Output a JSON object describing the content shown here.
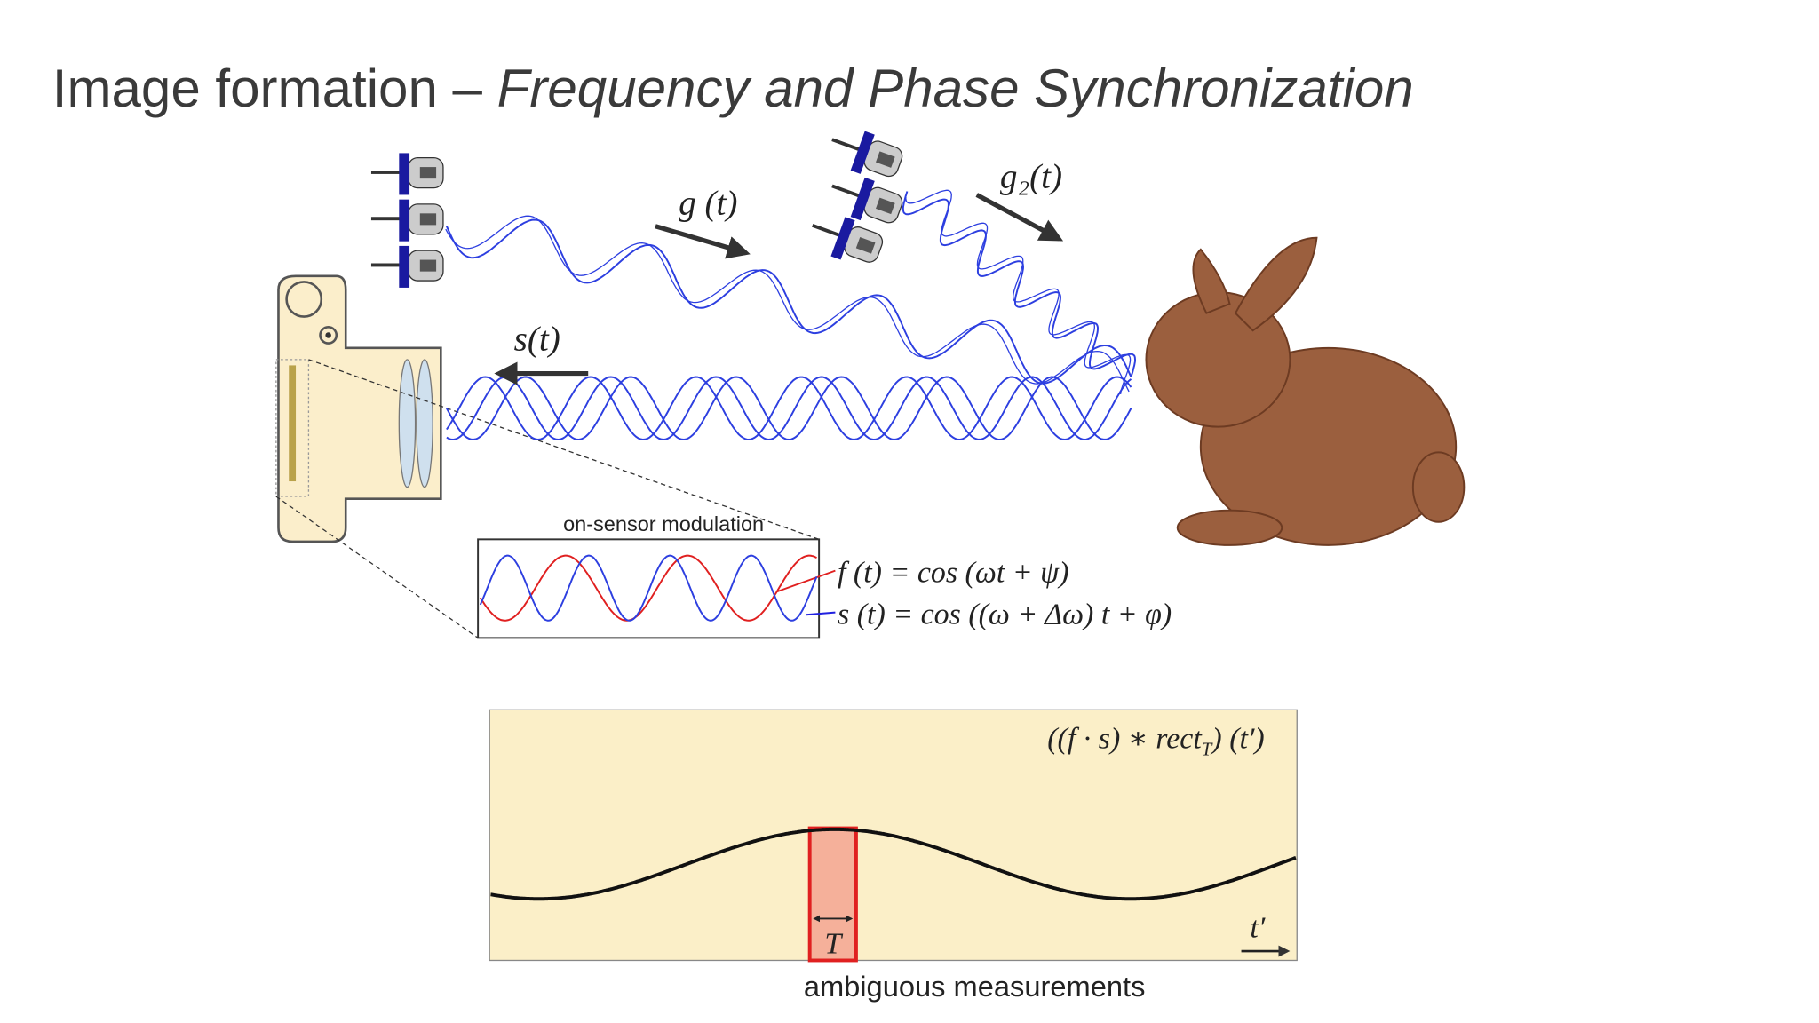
{
  "header": {
    "title": "Image formation – ",
    "title_italic": "Frequency and Phase Synchronization"
  },
  "diagram": {
    "g_label": "g (t)",
    "g2_label": "g₂(t)",
    "s_label": "s(t)"
  },
  "inset": {
    "label": "on-sensor modulation",
    "f_formula": "f (t) = cos (ωt + ψ)",
    "s_formula": "s (t) = cos ((ω + Δω) t + φ)"
  },
  "bottom_plot": {
    "formula_main": "((f · s) ∗ rect",
    "formula_sub": "T",
    "formula_tail": ") (t′)",
    "t_label": "T",
    "axis_label": "t′",
    "caption": "ambiguous measurements"
  }
}
